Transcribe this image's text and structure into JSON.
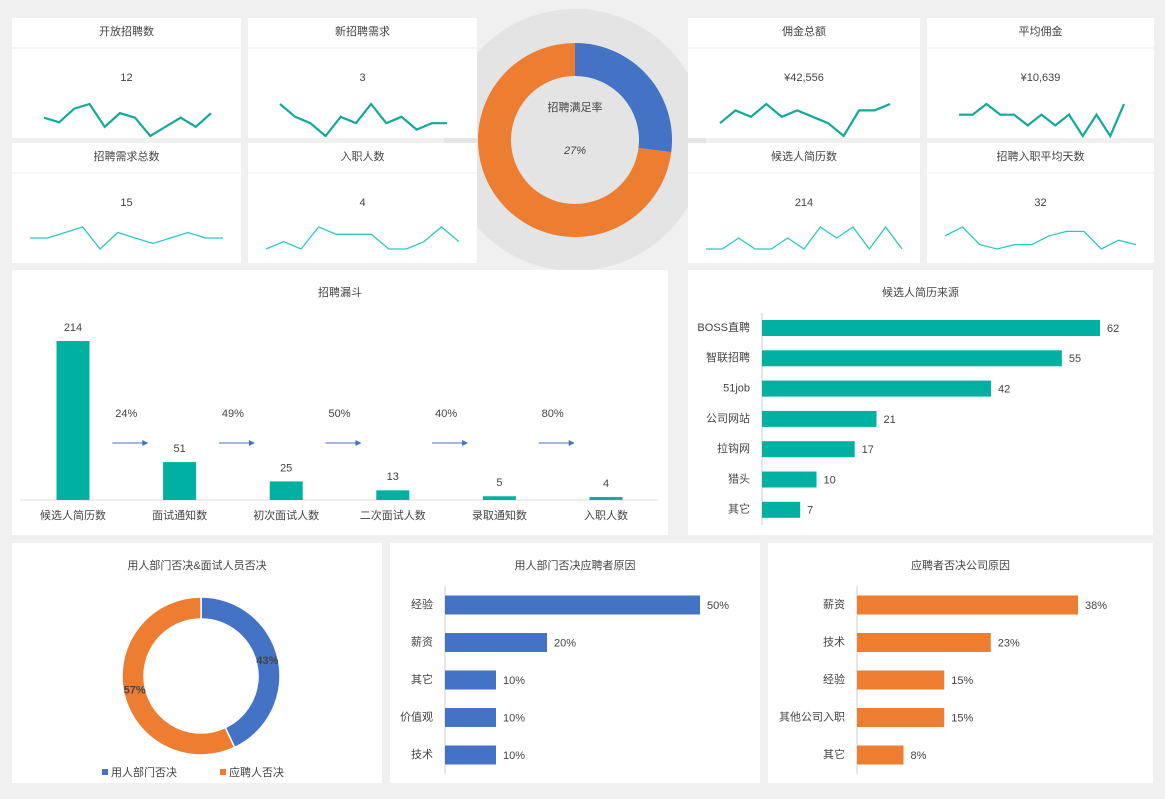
{
  "kpis": [
    {
      "label": "开放招聘数",
      "value": "12",
      "color": "#14a89b",
      "sparkline": [
        5,
        4,
        7,
        8,
        3,
        6,
        5,
        1,
        3,
        5,
        3,
        6
      ]
    },
    {
      "label": "新招聘需求",
      "value": "3",
      "color": "#14a89b",
      "sparkline": [
        7,
        5,
        4,
        2,
        5,
        4,
        7,
        4,
        5,
        3,
        4,
        4
      ]
    },
    {
      "label": "招聘需求总数",
      "value": "15",
      "color": "#2cc8c0",
      "sparkline": [
        5,
        5,
        6,
        7,
        3,
        6,
        5,
        4,
        5,
        6,
        5,
        5
      ]
    },
    {
      "label": "入职人数",
      "value": "4",
      "color": "#2cc8c0",
      "sparkline": [
        3,
        4,
        3,
        6,
        5,
        5,
        5,
        3,
        3,
        4,
        6,
        4
      ]
    },
    {
      "label": "佣金总额",
      "value": "¥42,556",
      "color": "#14a89b",
      "sparkline": [
        4,
        6,
        5,
        7,
        5,
        6,
        5,
        4,
        2,
        6,
        6,
        7
      ]
    },
    {
      "label": "平均佣金",
      "value": "¥10,639",
      "color": "#14a89b",
      "sparkline": [
        5,
        5,
        6,
        5,
        5,
        4,
        5,
        4,
        5,
        3,
        5,
        3,
        6
      ]
    },
    {
      "label": "候选人简历数",
      "value": "214",
      "color": "#2cc8c0",
      "sparkline": [
        4,
        4,
        5,
        4,
        4,
        5,
        4,
        6,
        5,
        6,
        4,
        6,
        4
      ]
    },
    {
      "label": "招聘入职平均天数",
      "value": "32",
      "color": "#2cc8c0",
      "sparkline": [
        6,
        8,
        4,
        3,
        4,
        4,
        6,
        7,
        7,
        3,
        5,
        4
      ]
    }
  ],
  "chart_data": [
    {
      "type": "gauge",
      "title": "招聘满足率",
      "values": [
        27,
        73
      ],
      "colors": [
        "#4472c4",
        "#ed7d31"
      ],
      "center_label": "27%"
    },
    {
      "type": "funnel",
      "title": "招聘漏斗",
      "categories": [
        "候选人简历数",
        "面试通知数",
        "初次面试人数",
        "二次面试人数",
        "录取通知数",
        "入职人数"
      ],
      "values": [
        214,
        51,
        25,
        13,
        5,
        4
      ],
      "color": "#00b0a0",
      "annotations": [
        "24%",
        "49%",
        "50%",
        "40%",
        "80%"
      ]
    },
    {
      "type": "hbar",
      "title": "候选人简历来源",
      "categories": [
        "BOSS直聘",
        "智联招聘",
        "51job",
        "公司网站",
        "拉钩网",
        "猎头",
        "其它"
      ],
      "values": [
        62,
        55,
        42,
        21,
        17,
        10,
        7
      ],
      "color": "#00b0a0"
    },
    {
      "type": "pie",
      "title": "用人部门否决&面试人员否决",
      "series": [
        {
          "name": "用人部门否决",
          "color": "#4472c4"
        },
        {
          "name": "应聘人否决",
          "color": "#ed7d31"
        }
      ],
      "values": [
        43,
        57
      ],
      "value_labels": [
        "43%",
        "57%"
      ]
    },
    {
      "type": "hbar",
      "title": "用人部门否决应聘者原因",
      "categories": [
        "经验",
        "薪资",
        "其它",
        "价值观",
        "技术"
      ],
      "values": [
        50,
        20,
        10,
        10,
        10
      ],
      "value_labels": [
        "50%",
        "20%",
        "10%",
        "10%",
        "10%"
      ],
      "color": "#4472c4"
    },
    {
      "type": "hbar",
      "title": "应聘者否决公司原因",
      "categories": [
        "薪资",
        "技术",
        "经验",
        "其他公司入职",
        "其它"
      ],
      "values": [
        38,
        23,
        15,
        15,
        8
      ],
      "value_labels": [
        "38%",
        "23%",
        "15%",
        "15%",
        "8%"
      ],
      "color": "#ed7d31"
    }
  ]
}
